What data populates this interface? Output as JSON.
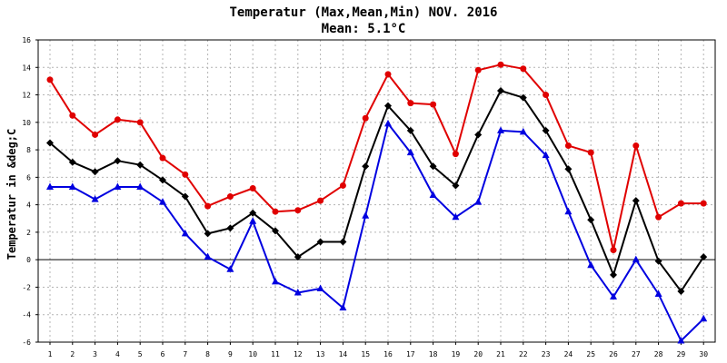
{
  "chart_data": {
    "type": "line",
    "title": "Temperatur (Max,Mean,Min) NOV. 2016",
    "subtitle": "Mean: 5.1°C",
    "xlabel": "",
    "ylabel": "Temperatur in &deg;C",
    "categories": [
      "1",
      "2",
      "3",
      "4",
      "5",
      "6",
      "7",
      "8",
      "9",
      "10",
      "11",
      "12",
      "13",
      "14",
      "15",
      "16",
      "17",
      "18",
      "19",
      "20",
      "21",
      "22",
      "23",
      "24",
      "25",
      "26",
      "27",
      "28",
      "29",
      "30"
    ],
    "ylim": [
      -6,
      16
    ],
    "yticks": [
      "-6",
      "-4",
      "-2",
      "0",
      "2",
      "4",
      "6",
      "8",
      "10",
      "12",
      "14",
      "16"
    ],
    "grid": true,
    "series": [
      {
        "color": "#e00000",
        "marker": "circle",
        "values": [
          13.1,
          10.5,
          9.1,
          10.2,
          10.0,
          7.4,
          6.2,
          3.9,
          4.6,
          5.2,
          3.5,
          3.6,
          4.3,
          5.4,
          10.3,
          13.5,
          11.4,
          11.3,
          7.7,
          13.8,
          14.2,
          13.9,
          12.0,
          8.3,
          7.8,
          0.7,
          8.3,
          3.1,
          4.1,
          4.1
        ]
      },
      {
        "color": "#000000",
        "marker": "diamond",
        "values": [
          8.5,
          7.1,
          6.4,
          7.2,
          6.9,
          5.8,
          4.6,
          1.9,
          2.3,
          3.4,
          2.1,
          0.2,
          1.3,
          1.3,
          6.8,
          11.2,
          9.4,
          6.8,
          5.4,
          9.1,
          12.3,
          11.8,
          9.4,
          6.6,
          2.9,
          -1.1,
          4.3,
          -0.1,
          -2.3,
          0.2
        ]
      },
      {
        "color": "#0000e0",
        "marker": "triangle",
        "values": [
          5.3,
          5.3,
          4.4,
          5.3,
          5.3,
          4.2,
          1.9,
          0.2,
          -0.7,
          2.8,
          -1.6,
          -2.4,
          -2.1,
          -3.5,
          3.2,
          9.9,
          7.8,
          4.7,
          3.1,
          4.2,
          9.4,
          9.3,
          7.6,
          3.5,
          -0.4,
          -2.7,
          0.0,
          -2.5,
          -5.9,
          -4.3
        ]
      }
    ]
  }
}
